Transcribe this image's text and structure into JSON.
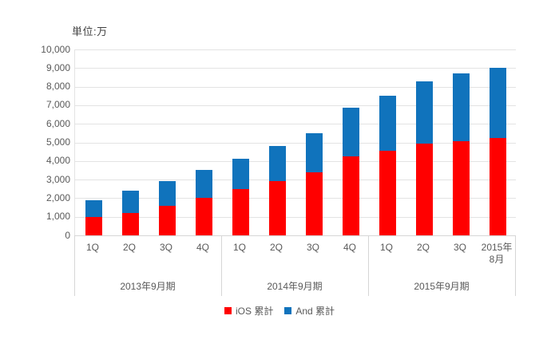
{
  "unit_label": "単位:万",
  "colors": {
    "ios_red": "#FF0000",
    "android_blue": "#1073BC",
    "gridline": "#e3e3e3",
    "axis_line": "#d6d6d6",
    "axis_text": "#595959"
  },
  "legend": {
    "items": [
      {
        "label": "iOS 累計",
        "color": "#FF0000"
      },
      {
        "label": "And 累計",
        "color": "#1073BC"
      }
    ]
  },
  "chart_data": {
    "type": "bar",
    "stacked": true,
    "title": "単位:万",
    "categories": [
      "1Q",
      "2Q",
      "3Q",
      "4Q",
      "1Q",
      "2Q",
      "3Q",
      "4Q",
      "1Q",
      "2Q",
      "3Q",
      "2015年\n8月"
    ],
    "groups": [
      {
        "label": "2013年9月期",
        "count": 4
      },
      {
        "label": "2014年9月期",
        "count": 4
      },
      {
        "label": "2015年9月期",
        "count": 4
      }
    ],
    "series": [
      {
        "name": "iOS 累計",
        "color": "#FF0000",
        "values": [
          1000,
          1200,
          1600,
          2000,
          2500,
          2900,
          3400,
          4250,
          4550,
          4950,
          5050,
          5250
        ]
      },
      {
        "name": "And 累計",
        "color": "#1073BC",
        "values": [
          900,
          1200,
          1300,
          1500,
          1600,
          1900,
          2100,
          2600,
          2950,
          3350,
          3650,
          3750
        ]
      }
    ],
    "totals": [
      1900,
      2400,
      2900,
      3500,
      4100,
      4800,
      5500,
      6850,
      7500,
      8300,
      8700,
      9000
    ],
    "xlabel": "",
    "ylabel": "",
    "ylim": [
      0,
      10000
    ],
    "ytick_step": 1000,
    "grid": true,
    "legend_position": "bottom"
  }
}
